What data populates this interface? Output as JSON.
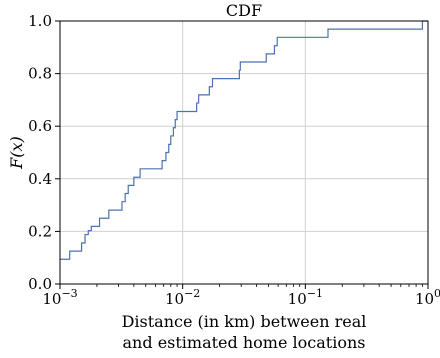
{
  "chart_data": {
    "type": "line",
    "step": true,
    "title": "CDF",
    "xlabel_lines": [
      "Distance (in km) between real",
      "and estimated home locations"
    ],
    "ylabel": "F(x)",
    "x_scale": "log",
    "xlim": [
      0.001,
      1
    ],
    "ylim": [
      0,
      1
    ],
    "grid": true,
    "x_ticks": [
      0.001,
      0.01,
      0.1,
      1
    ],
    "x_tick_labels": [
      {
        "base": "10",
        "exp": "−3"
      },
      {
        "base": "10",
        "exp": "−2"
      },
      {
        "base": "10",
        "exp": "−1"
      },
      {
        "base": "10",
        "exp": "0"
      }
    ],
    "y_ticks": [
      0.0,
      0.2,
      0.4,
      0.6,
      0.8,
      1.0
    ],
    "y_tick_labels": [
      "0.0",
      "0.2",
      "0.4",
      "0.6",
      "0.8",
      "1.0"
    ],
    "line_color": "#4c72b0",
    "series": [
      {
        "x": [
          0.001,
          0.0012,
          0.0015,
          0.0016,
          0.0017,
          0.0018,
          0.0019,
          0.0021,
          0.0025,
          0.0032,
          0.0034,
          0.0036,
          0.004,
          0.0045,
          0.0062,
          0.0068,
          0.0073,
          0.0077,
          0.008,
          0.0084,
          0.0087,
          0.009,
          0.0095,
          0.013,
          0.0135,
          0.014,
          0.0165,
          0.0175,
          0.0198,
          0.029,
          0.0295,
          0.03,
          0.031,
          0.048,
          0.056,
          0.059,
          0.153,
          0.9,
          1.0
        ],
        "y": [
          0.094,
          0.125,
          0.156,
          0.188,
          0.203,
          0.219,
          0.219,
          0.25,
          0.281,
          0.313,
          0.344,
          0.375,
          0.406,
          0.438,
          0.438,
          0.469,
          0.5,
          0.531,
          0.563,
          0.594,
          0.625,
          0.656,
          0.656,
          0.688,
          0.719,
          0.719,
          0.75,
          0.781,
          0.781,
          0.813,
          0.844,
          0.844,
          0.844,
          0.875,
          0.906,
          0.938,
          0.969,
          1.0,
          1.0
        ]
      }
    ]
  }
}
